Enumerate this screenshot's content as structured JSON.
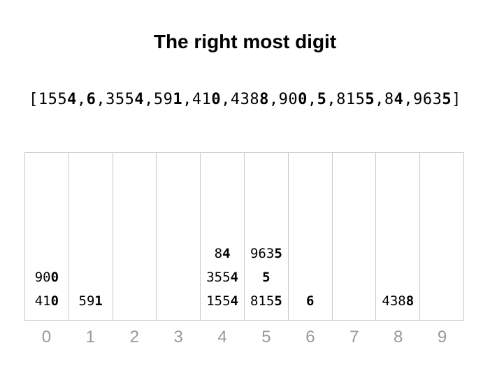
{
  "title": "The right most digit",
  "array": [
    "1554",
    "6",
    "3554",
    "591",
    "410",
    "4388",
    "900",
    "5",
    "8155",
    "84",
    "9635"
  ],
  "buckets": [
    {
      "label": "0",
      "items": [
        "410",
        "900"
      ]
    },
    {
      "label": "1",
      "items": [
        "591"
      ]
    },
    {
      "label": "2",
      "items": []
    },
    {
      "label": "3",
      "items": []
    },
    {
      "label": "4",
      "items": [
        "1554",
        "3554",
        "84"
      ]
    },
    {
      "label": "5",
      "items": [
        "8155",
        "5",
        "9635"
      ]
    },
    {
      "label": "6",
      "items": [
        "6"
      ]
    },
    {
      "label": "7",
      "items": []
    },
    {
      "label": "8",
      "items": [
        "4388"
      ]
    },
    {
      "label": "9",
      "items": []
    }
  ]
}
